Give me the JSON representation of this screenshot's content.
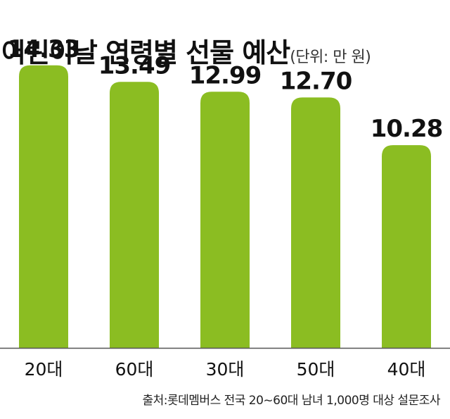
{
  "title": "어린이날 연령별 선물 예산",
  "unit_note": "(단위: 만 원)",
  "source": "출처:롯데멤버스 전국 20~60대 남녀 1,000명 대상 설문조사",
  "colors": {
    "bar": "#8bbd22",
    "text": "#111111",
    "axis": "#555555"
  },
  "chart_data": {
    "type": "bar",
    "categories": [
      "20대",
      "60대",
      "30대",
      "50대",
      "40대"
    ],
    "values": [
      14.33,
      13.49,
      12.99,
      12.7,
      10.28
    ],
    "value_labels": [
      "14.33",
      "13.49",
      "12.99",
      "12.70",
      "10.28"
    ],
    "title": "어린이날 연령별 선물 예산",
    "xlabel": "",
    "ylabel": "",
    "ylim": [
      0,
      15.5
    ],
    "grid": false
  }
}
